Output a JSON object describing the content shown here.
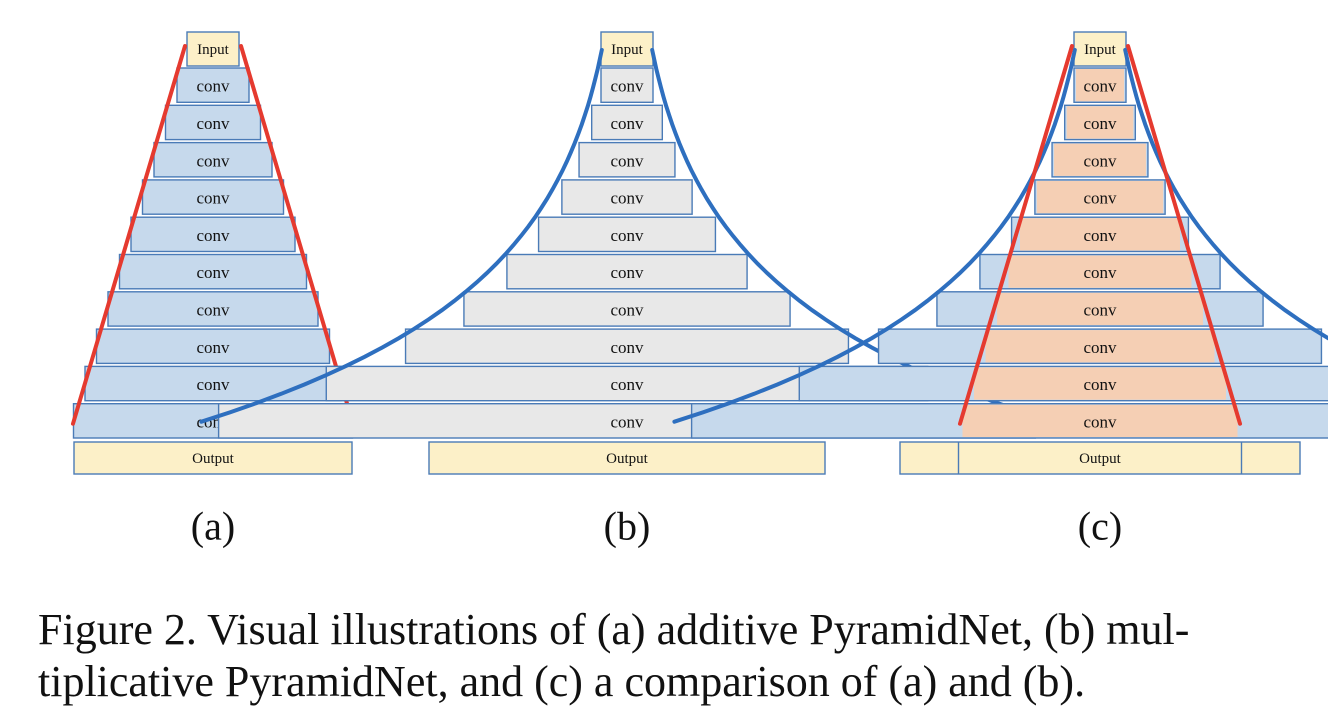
{
  "figure": {
    "input_label": "Input",
    "output_label": "Output",
    "layer_label": "conv",
    "panels": [
      {
        "id": "a",
        "label": "(a)",
        "block_fill": "#c6d9ec",
        "curves": [
          "additive"
        ]
      },
      {
        "id": "b",
        "label": "(b)",
        "block_fill": "#e8e8e8",
        "curves": [
          "multiplicative"
        ]
      },
      {
        "id": "c",
        "label": "(c)",
        "block_fill": "#c6d9ec",
        "inner_fill": "#f5cfb4",
        "curves": [
          "additive",
          "multiplicative"
        ]
      }
    ],
    "colors": {
      "block_stroke": "#4a7bb7",
      "io_fill": "#fcf0c8",
      "additive_line": "#e53a2f",
      "multiplicative_line": "#2e6fbf",
      "panel_b_fill": "#e8e8e8"
    }
  },
  "caption": {
    "line1": "Figure 2. Visual illustrations of (a) additive PyramidNet, (b) mul-",
    "line2": "tiplicative PyramidNet, and (c) a comparison of (a) and (b)."
  }
}
